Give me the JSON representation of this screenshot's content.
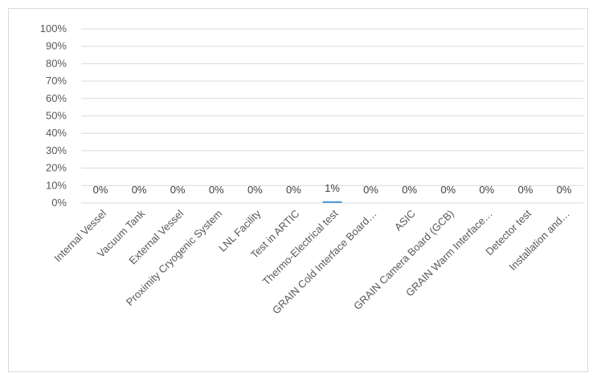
{
  "chart_data": {
    "type": "bar",
    "categories": [
      "Internal Vessel",
      "Vacuum Tank",
      "External Vessel",
      "Proximity Cryogenic System",
      "LNL Facility",
      "Test in ARTIC",
      "Thermo-Electrical test",
      "GRAIN Cold Interface Board…",
      "ASIC",
      "GRAIN Camera Board (GCB)",
      "GRAIN Warm Interface…",
      "Detector test",
      "Installation and…"
    ],
    "values": [
      0,
      0,
      0,
      0,
      0,
      0,
      1,
      0,
      0,
      0,
      0,
      0,
      0
    ],
    "data_labels": [
      "0%",
      "0%",
      "0%",
      "0%",
      "0%",
      "0%",
      "1%",
      "0%",
      "0%",
      "0%",
      "0%",
      "0%",
      "0%"
    ],
    "y_ticks": [
      "0%",
      "10%",
      "20%",
      "30%",
      "40%",
      "50%",
      "60%",
      "70%",
      "80%",
      "90%",
      "100%"
    ],
    "ylim": [
      0,
      100
    ],
    "y_unit": "%",
    "grid": true,
    "bar_color": "#5b9bd5",
    "title": "",
    "xlabel": "",
    "ylabel": ""
  }
}
